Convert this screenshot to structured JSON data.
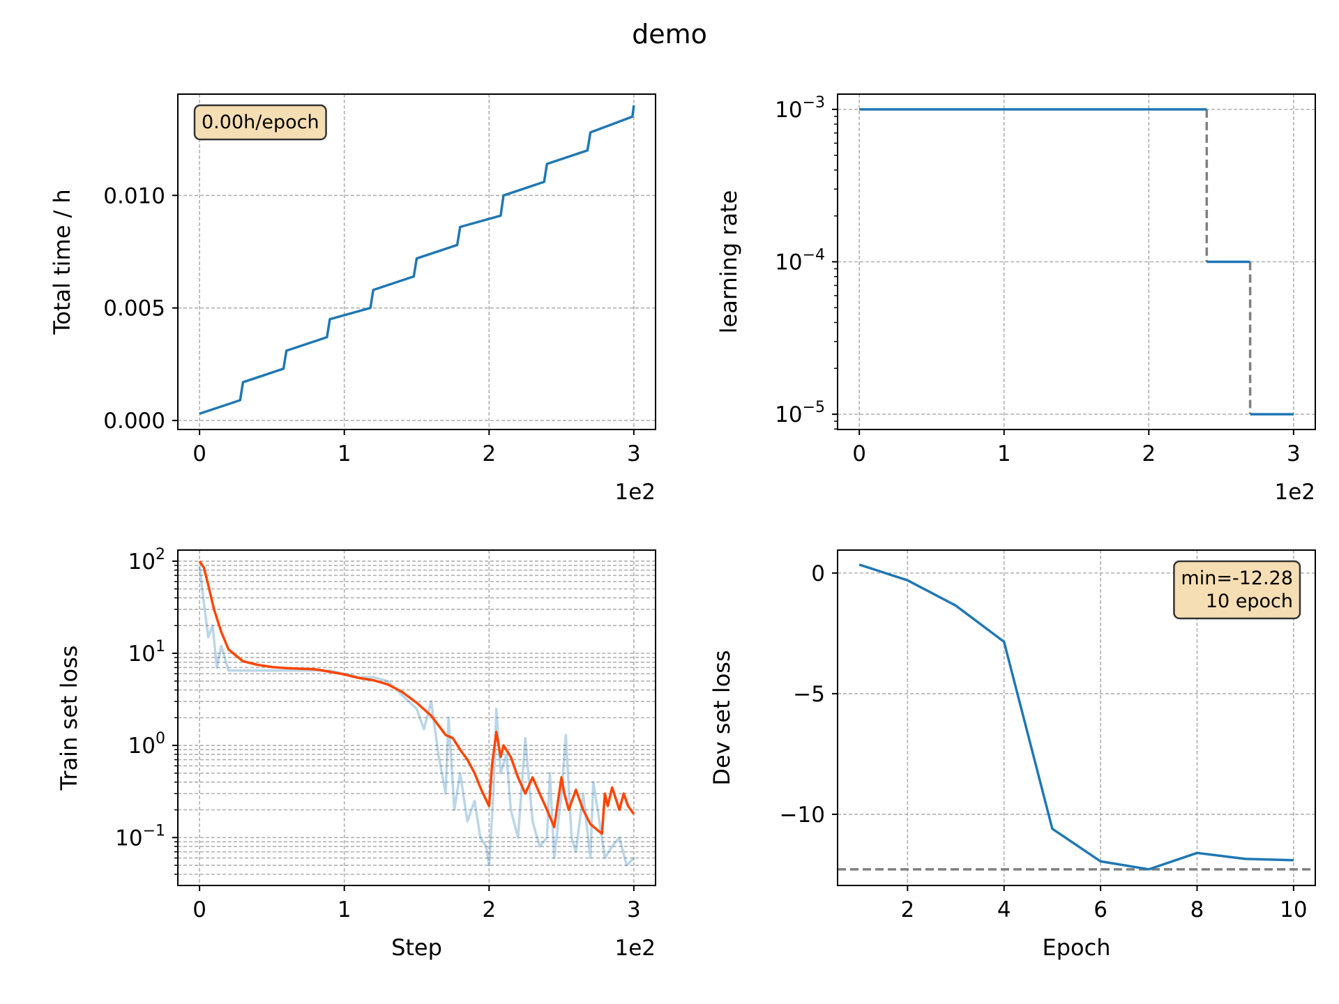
{
  "figure": {
    "suptitle": "demo"
  },
  "chart_data": [
    {
      "id": "time",
      "type": "line",
      "xlabel": "",
      "ylabel": "Total time / h",
      "x_offset_label": "1e2",
      "xlim": [
        -0.15,
        3.15
      ],
      "ylim": [
        -0.0004,
        0.0145
      ],
      "xticks": [
        0,
        1,
        2,
        3
      ],
      "xtick_labels": [
        "0",
        "1",
        "2",
        "3"
      ],
      "yticks": [
        0,
        0.005,
        0.01
      ],
      "ytick_labels": [
        "0.000",
        "0.005",
        "0.010"
      ],
      "grid": true,
      "annotation": {
        "text": "0.00h/epoch",
        "position": "top-left"
      },
      "series": [
        {
          "color": "#1f77b4",
          "x": [
            0,
            0.28,
            0.3,
            0.58,
            0.6,
            0.88,
            0.9,
            1.18,
            1.2,
            1.48,
            1.5,
            1.78,
            1.8,
            2.08,
            2.1,
            2.38,
            2.4,
            2.68,
            2.7,
            2.99,
            3.0
          ],
          "y": [
            0.0003,
            0.0009,
            0.0017,
            0.0023,
            0.0031,
            0.0037,
            0.0045,
            0.005,
            0.0058,
            0.0064,
            0.0072,
            0.0078,
            0.0086,
            0.0091,
            0.01,
            0.0106,
            0.0114,
            0.012,
            0.0128,
            0.0135,
            0.014
          ]
        }
      ]
    },
    {
      "id": "lr",
      "type": "line",
      "xlabel": "",
      "ylabel": "learning rate",
      "x_offset_label": "1e2",
      "yscale": "log",
      "xlim": [
        -0.15,
        3.15
      ],
      "ylim_log10": [
        -5.1,
        -2.9
      ],
      "xticks": [
        0,
        1,
        2,
        3
      ],
      "xtick_labels": [
        "0",
        "1",
        "2",
        "3"
      ],
      "yticks_log10": [
        -3,
        -4,
        -5
      ],
      "ytick_base": "10",
      "ytick_exponents": [
        "−3",
        "−4",
        "−5"
      ],
      "grid": true,
      "series": [
        {
          "color": "#1f77b4",
          "x": [
            0,
            2.4
          ],
          "y": [
            0.001,
            0.001
          ]
        },
        {
          "color": "#1f77b4",
          "x": [
            2.4,
            2.7
          ],
          "y": [
            0.0001,
            0.0001
          ]
        },
        {
          "color": "#1f77b4",
          "x": [
            2.7,
            3.0
          ],
          "y": [
            1e-05,
            1e-05
          ]
        }
      ],
      "drops": [
        {
          "color": "#808080",
          "x": 2.4,
          "y": [
            0.001,
            0.0001
          ]
        },
        {
          "color": "#808080",
          "x": 2.7,
          "y": [
            0.0001,
            1e-05
          ]
        }
      ]
    },
    {
      "id": "train",
      "type": "line",
      "xlabel": "Step",
      "ylabel": "Train set loss",
      "x_offset_label": "1e2",
      "yscale": "log",
      "xlim": [
        -0.15,
        3.15
      ],
      "ylim_log10": [
        -1.52,
        2.12
      ],
      "xticks": [
        0,
        1,
        2,
        3
      ],
      "xtick_labels": [
        "0",
        "1",
        "2",
        "3"
      ],
      "yticks_log10": [
        2,
        1,
        0,
        -1
      ],
      "ytick_base": "10",
      "ytick_exponents": [
        "2",
        "1",
        "0",
        "−1"
      ],
      "grid": true,
      "series": [
        {
          "color": "#1f77b4",
          "opacity": 0.3,
          "x": [
            0,
            0.03,
            0.06,
            0.09,
            0.12,
            0.15,
            0.2,
            0.3,
            0.4,
            0.5,
            0.6,
            0.7,
            0.8,
            0.9,
            1.0,
            1.1,
            1.2,
            1.3,
            1.4,
            1.5,
            1.55,
            1.6,
            1.65,
            1.7,
            1.72,
            1.76,
            1.8,
            1.85,
            1.9,
            1.94,
            1.98,
            2.0,
            2.03,
            2.05,
            2.08,
            2.12,
            2.15,
            2.2,
            2.25,
            2.3,
            2.35,
            2.4,
            2.42,
            2.45,
            2.5,
            2.53,
            2.57,
            2.6,
            2.65,
            2.7,
            2.72,
            2.75,
            2.8,
            2.85,
            2.9,
            2.95,
            3.0
          ],
          "y": [
            90,
            35,
            15,
            20,
            7,
            12,
            6.5,
            6.5,
            6.5,
            6.5,
            6.5,
            6.5,
            6.5,
            6.5,
            6.0,
            5.5,
            5.5,
            5.0,
            3.5,
            2.5,
            1.5,
            3.0,
            0.8,
            0.3,
            2.0,
            0.2,
            0.5,
            0.15,
            0.25,
            0.1,
            0.08,
            0.05,
            0.3,
            2.5,
            0.5,
            0.8,
            0.2,
            0.1,
            1.2,
            0.15,
            0.08,
            0.1,
            0.5,
            0.06,
            0.3,
            1.3,
            0.1,
            0.07,
            0.3,
            0.06,
            0.4,
            0.2,
            0.06,
            0.08,
            0.1,
            0.05,
            0.06
          ]
        },
        {
          "color": "#ff4500",
          "x": [
            0,
            0.03,
            0.06,
            0.1,
            0.15,
            0.2,
            0.3,
            0.4,
            0.5,
            0.6,
            0.8,
            0.9,
            1.0,
            1.1,
            1.2,
            1.3,
            1.4,
            1.5,
            1.6,
            1.7,
            1.75,
            1.8,
            1.85,
            1.9,
            1.95,
            2.0,
            2.02,
            2.05,
            2.08,
            2.1,
            2.15,
            2.2,
            2.25,
            2.3,
            2.35,
            2.4,
            2.45,
            2.5,
            2.52,
            2.55,
            2.6,
            2.65,
            2.7,
            2.75,
            2.78,
            2.8,
            2.82,
            2.85,
            2.88,
            2.9,
            2.93,
            2.96,
            3.0
          ],
          "y": [
            100,
            85,
            55,
            30,
            17,
            11,
            8.2,
            7.5,
            7.1,
            6.9,
            6.7,
            6.3,
            5.9,
            5.4,
            5.1,
            4.6,
            3.8,
            2.9,
            2.1,
            1.3,
            1.2,
            0.9,
            0.7,
            0.5,
            0.32,
            0.22,
            0.6,
            1.4,
            0.75,
            1.0,
            0.75,
            0.45,
            0.3,
            0.45,
            0.3,
            0.2,
            0.13,
            0.45,
            0.3,
            0.2,
            0.33,
            0.2,
            0.14,
            0.12,
            0.11,
            0.3,
            0.22,
            0.35,
            0.25,
            0.2,
            0.3,
            0.22,
            0.18
          ]
        }
      ]
    },
    {
      "id": "dev",
      "type": "line",
      "xlabel": "Epoch",
      "ylabel": "Dev set loss",
      "xlim": [
        0.55,
        10.45
      ],
      "ylim": [
        -12.95,
        0.95
      ],
      "xticks": [
        2,
        4,
        6,
        8,
        10
      ],
      "xtick_labels": [
        "2",
        "4",
        "6",
        "8",
        "10"
      ],
      "yticks": [
        0,
        -5,
        -10
      ],
      "ytick_labels": [
        "0",
        "−5",
        "−10"
      ],
      "grid": true,
      "annotation": {
        "text": [
          "min=-12.28",
          "10 epoch"
        ],
        "position": "top-right"
      },
      "min_line": {
        "y": -12.28,
        "color": "#808080"
      },
      "series": [
        {
          "color": "#1f77b4",
          "x": [
            1,
            2,
            3,
            4,
            5,
            6,
            7,
            8,
            9,
            10
          ],
          "y": [
            0.35,
            -0.3,
            -1.35,
            -2.85,
            -10.6,
            -11.95,
            -12.28,
            -11.6,
            -11.85,
            -11.9
          ]
        }
      ]
    }
  ]
}
